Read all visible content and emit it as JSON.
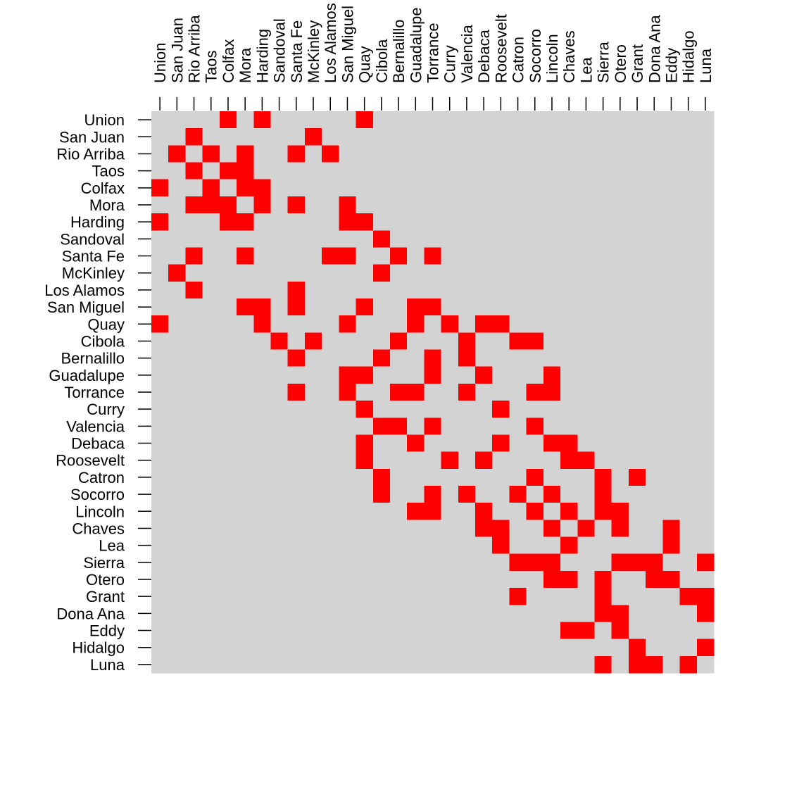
{
  "chart_data": {
    "type": "heatmap",
    "categories": [
      "Union",
      "San Juan",
      "Rio Arriba",
      "Taos",
      "Colfax",
      "Mora",
      "Harding",
      "Sandoval",
      "Santa Fe",
      "McKinley",
      "Los Alamos",
      "San Miguel",
      "Quay",
      "Cibola",
      "Bernalillo",
      "Guadalupe",
      "Torrance",
      "Curry",
      "Valencia",
      "Debaca",
      "Roosevelt",
      "Catron",
      "Socorro",
      "Lincoln",
      "Chaves",
      "Lea",
      "Sierra",
      "Otero",
      "Grant",
      "Dona Ana",
      "Eddy",
      "Hidalgo",
      "Luna"
    ],
    "colors": [
      "#d3d3d3",
      "#ff0000"
    ],
    "values": [
      [
        0,
        0,
        0,
        0,
        1,
        0,
        1,
        0,
        0,
        0,
        0,
        0,
        1,
        0,
        0,
        0,
        0,
        0,
        0,
        0,
        0,
        0,
        0,
        0,
        0,
        0,
        0,
        0,
        0,
        0,
        0,
        0,
        0
      ],
      [
        0,
        0,
        1,
        0,
        0,
        0,
        0,
        0,
        0,
        1,
        0,
        0,
        0,
        0,
        0,
        0,
        0,
        0,
        0,
        0,
        0,
        0,
        0,
        0,
        0,
        0,
        0,
        0,
        0,
        0,
        0,
        0,
        0
      ],
      [
        0,
        1,
        0,
        1,
        0,
        1,
        0,
        0,
        1,
        0,
        1,
        0,
        0,
        0,
        0,
        0,
        0,
        0,
        0,
        0,
        0,
        0,
        0,
        0,
        0,
        0,
        0,
        0,
        0,
        0,
        0,
        0,
        0
      ],
      [
        0,
        0,
        1,
        0,
        1,
        1,
        0,
        0,
        0,
        0,
        0,
        0,
        0,
        0,
        0,
        0,
        0,
        0,
        0,
        0,
        0,
        0,
        0,
        0,
        0,
        0,
        0,
        0,
        0,
        0,
        0,
        0,
        0
      ],
      [
        1,
        0,
        0,
        1,
        0,
        1,
        1,
        0,
        0,
        0,
        0,
        0,
        0,
        0,
        0,
        0,
        0,
        0,
        0,
        0,
        0,
        0,
        0,
        0,
        0,
        0,
        0,
        0,
        0,
        0,
        0,
        0,
        0
      ],
      [
        0,
        0,
        1,
        1,
        1,
        0,
        1,
        0,
        1,
        0,
        0,
        1,
        0,
        0,
        0,
        0,
        0,
        0,
        0,
        0,
        0,
        0,
        0,
        0,
        0,
        0,
        0,
        0,
        0,
        0,
        0,
        0,
        0
      ],
      [
        1,
        0,
        0,
        0,
        1,
        1,
        0,
        0,
        0,
        0,
        0,
        1,
        1,
        0,
        0,
        0,
        0,
        0,
        0,
        0,
        0,
        0,
        0,
        0,
        0,
        0,
        0,
        0,
        0,
        0,
        0,
        0,
        0
      ],
      [
        0,
        0,
        0,
        0,
        0,
        0,
        0,
        0,
        0,
        0,
        0,
        0,
        0,
        1,
        0,
        0,
        0,
        0,
        0,
        0,
        0,
        0,
        0,
        0,
        0,
        0,
        0,
        0,
        0,
        0,
        0,
        0,
        0
      ],
      [
        0,
        0,
        1,
        0,
        0,
        1,
        0,
        0,
        0,
        0,
        1,
        1,
        0,
        0,
        1,
        0,
        1,
        0,
        0,
        0,
        0,
        0,
        0,
        0,
        0,
        0,
        0,
        0,
        0,
        0,
        0,
        0,
        0
      ],
      [
        0,
        1,
        0,
        0,
        0,
        0,
        0,
        0,
        0,
        0,
        0,
        0,
        0,
        1,
        0,
        0,
        0,
        0,
        0,
        0,
        0,
        0,
        0,
        0,
        0,
        0,
        0,
        0,
        0,
        0,
        0,
        0,
        0
      ],
      [
        0,
        0,
        1,
        0,
        0,
        0,
        0,
        0,
        1,
        0,
        0,
        0,
        0,
        0,
        0,
        0,
        0,
        0,
        0,
        0,
        0,
        0,
        0,
        0,
        0,
        0,
        0,
        0,
        0,
        0,
        0,
        0,
        0
      ],
      [
        0,
        0,
        0,
        0,
        0,
        1,
        1,
        0,
        1,
        0,
        0,
        0,
        1,
        0,
        0,
        1,
        1,
        0,
        0,
        0,
        0,
        0,
        0,
        0,
        0,
        0,
        0,
        0,
        0,
        0,
        0,
        0,
        0
      ],
      [
        1,
        0,
        0,
        0,
        0,
        0,
        1,
        0,
        0,
        0,
        0,
        1,
        0,
        0,
        0,
        1,
        0,
        1,
        0,
        1,
        1,
        0,
        0,
        0,
        0,
        0,
        0,
        0,
        0,
        0,
        0,
        0,
        0
      ],
      [
        0,
        0,
        0,
        0,
        0,
        0,
        0,
        1,
        0,
        1,
        0,
        0,
        0,
        0,
        1,
        0,
        0,
        0,
        1,
        0,
        0,
        1,
        1,
        0,
        0,
        0,
        0,
        0,
        0,
        0,
        0,
        0,
        0
      ],
      [
        0,
        0,
        0,
        0,
        0,
        0,
        0,
        0,
        1,
        0,
        0,
        0,
        0,
        1,
        0,
        0,
        1,
        0,
        1,
        0,
        0,
        0,
        0,
        0,
        0,
        0,
        0,
        0,
        0,
        0,
        0,
        0,
        0
      ],
      [
        0,
        0,
        0,
        0,
        0,
        0,
        0,
        0,
        0,
        0,
        0,
        1,
        1,
        0,
        0,
        0,
        1,
        0,
        0,
        1,
        0,
        0,
        0,
        1,
        0,
        0,
        0,
        0,
        0,
        0,
        0,
        0,
        0
      ],
      [
        0,
        0,
        0,
        0,
        0,
        0,
        0,
        0,
        1,
        0,
        0,
        1,
        0,
        0,
        1,
        1,
        0,
        0,
        1,
        0,
        0,
        0,
        1,
        1,
        0,
        0,
        0,
        0,
        0,
        0,
        0,
        0,
        0
      ],
      [
        0,
        0,
        0,
        0,
        0,
        0,
        0,
        0,
        0,
        0,
        0,
        0,
        1,
        0,
        0,
        0,
        0,
        0,
        0,
        0,
        1,
        0,
        0,
        0,
        0,
        0,
        0,
        0,
        0,
        0,
        0,
        0,
        0
      ],
      [
        0,
        0,
        0,
        0,
        0,
        0,
        0,
        0,
        0,
        0,
        0,
        0,
        0,
        1,
        1,
        0,
        1,
        0,
        0,
        0,
        0,
        0,
        1,
        0,
        0,
        0,
        0,
        0,
        0,
        0,
        0,
        0,
        0
      ],
      [
        0,
        0,
        0,
        0,
        0,
        0,
        0,
        0,
        0,
        0,
        0,
        0,
        1,
        0,
        0,
        1,
        0,
        0,
        0,
        0,
        1,
        0,
        0,
        1,
        1,
        0,
        0,
        0,
        0,
        0,
        0,
        0,
        0
      ],
      [
        0,
        0,
        0,
        0,
        0,
        0,
        0,
        0,
        0,
        0,
        0,
        0,
        1,
        0,
        0,
        0,
        0,
        1,
        0,
        1,
        0,
        0,
        0,
        0,
        1,
        1,
        0,
        0,
        0,
        0,
        0,
        0,
        0
      ],
      [
        0,
        0,
        0,
        0,
        0,
        0,
        0,
        0,
        0,
        0,
        0,
        0,
        0,
        1,
        0,
        0,
        0,
        0,
        0,
        0,
        0,
        0,
        1,
        0,
        0,
        0,
        1,
        0,
        1,
        0,
        0,
        0,
        0
      ],
      [
        0,
        0,
        0,
        0,
        0,
        0,
        0,
        0,
        0,
        0,
        0,
        0,
        0,
        1,
        0,
        0,
        1,
        0,
        1,
        0,
        0,
        1,
        0,
        1,
        0,
        0,
        1,
        0,
        0,
        0,
        0,
        0,
        0
      ],
      [
        0,
        0,
        0,
        0,
        0,
        0,
        0,
        0,
        0,
        0,
        0,
        0,
        0,
        0,
        0,
        1,
        1,
        0,
        0,
        1,
        0,
        0,
        1,
        0,
        1,
        0,
        1,
        1,
        0,
        0,
        0,
        0,
        0
      ],
      [
        0,
        0,
        0,
        0,
        0,
        0,
        0,
        0,
        0,
        0,
        0,
        0,
        0,
        0,
        0,
        0,
        0,
        0,
        0,
        1,
        1,
        0,
        0,
        1,
        0,
        1,
        0,
        1,
        0,
        0,
        1,
        0,
        0
      ],
      [
        0,
        0,
        0,
        0,
        0,
        0,
        0,
        0,
        0,
        0,
        0,
        0,
        0,
        0,
        0,
        0,
        0,
        0,
        0,
        0,
        1,
        0,
        0,
        0,
        1,
        0,
        0,
        0,
        0,
        0,
        1,
        0,
        0
      ],
      [
        0,
        0,
        0,
        0,
        0,
        0,
        0,
        0,
        0,
        0,
        0,
        0,
        0,
        0,
        0,
        0,
        0,
        0,
        0,
        0,
        0,
        1,
        1,
        1,
        0,
        0,
        0,
        1,
        1,
        1,
        0,
        0,
        1
      ],
      [
        0,
        0,
        0,
        0,
        0,
        0,
        0,
        0,
        0,
        0,
        0,
        0,
        0,
        0,
        0,
        0,
        0,
        0,
        0,
        0,
        0,
        0,
        0,
        1,
        1,
        0,
        1,
        0,
        0,
        1,
        1,
        0,
        0
      ],
      [
        0,
        0,
        0,
        0,
        0,
        0,
        0,
        0,
        0,
        0,
        0,
        0,
        0,
        0,
        0,
        0,
        0,
        0,
        0,
        0,
        0,
        1,
        0,
        0,
        0,
        0,
        1,
        0,
        0,
        0,
        0,
        1,
        1
      ],
      [
        0,
        0,
        0,
        0,
        0,
        0,
        0,
        0,
        0,
        0,
        0,
        0,
        0,
        0,
        0,
        0,
        0,
        0,
        0,
        0,
        0,
        0,
        0,
        0,
        0,
        0,
        1,
        1,
        0,
        0,
        0,
        0,
        1
      ],
      [
        0,
        0,
        0,
        0,
        0,
        0,
        0,
        0,
        0,
        0,
        0,
        0,
        0,
        0,
        0,
        0,
        0,
        0,
        0,
        0,
        0,
        0,
        0,
        0,
        1,
        1,
        0,
        1,
        0,
        0,
        0,
        0,
        0
      ],
      [
        0,
        0,
        0,
        0,
        0,
        0,
        0,
        0,
        0,
        0,
        0,
        0,
        0,
        0,
        0,
        0,
        0,
        0,
        0,
        0,
        0,
        0,
        0,
        0,
        0,
        0,
        0,
        0,
        1,
        0,
        0,
        0,
        1
      ],
      [
        0,
        0,
        0,
        0,
        0,
        0,
        0,
        0,
        0,
        0,
        0,
        0,
        0,
        0,
        0,
        0,
        0,
        0,
        0,
        0,
        0,
        0,
        0,
        0,
        0,
        0,
        1,
        0,
        1,
        1,
        0,
        1,
        0
      ]
    ]
  }
}
